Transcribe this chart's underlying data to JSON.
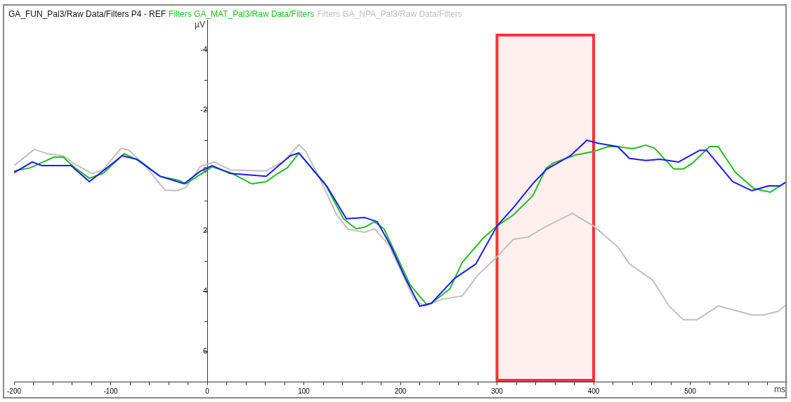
{
  "chart_data": {
    "type": "line",
    "title": "GA_FUN_Pal3/Raw Data/Filters P4 - REF",
    "xlabel": "ms",
    "ylabel": "µV",
    "xlim": [
      -200,
      600
    ],
    "ylim": [
      7,
      -5
    ],
    "xticks": [
      -200,
      {
        "value": -180,
        "label": null
      },
      {
        "value": -160,
        "label": null
      },
      {
        "value": -140,
        "label": null
      },
      {
        "value": -120,
        "label": null
      },
      -100,
      {
        "value": -80,
        "label": null
      },
      {
        "value": -60,
        "label": null
      },
      {
        "value": -40,
        "label": null
      },
      {
        "value": -20,
        "label": null
      },
      0,
      {
        "value": 20,
        "label": null
      },
      {
        "value": 40,
        "label": null
      },
      {
        "value": 60,
        "label": null
      },
      {
        "value": 80,
        "label": null
      },
      100,
      {
        "value": 120,
        "label": null
      },
      {
        "value": 140,
        "label": null
      },
      {
        "value": 160,
        "label": null
      },
      {
        "value": 180,
        "label": null
      },
      200,
      {
        "value": 220,
        "label": null
      },
      {
        "value": 240,
        "label": null
      },
      {
        "value": 260,
        "label": null
      },
      {
        "value": 280,
        "label": null
      },
      300,
      {
        "value": 320,
        "label": null
      },
      {
        "value": 340,
        "label": null
      },
      {
        "value": 360,
        "label": null
      },
      {
        "value": 380,
        "label": null
      },
      400,
      {
        "value": 420,
        "label": null
      },
      {
        "value": 440,
        "label": null
      },
      {
        "value": 460,
        "label": null
      },
      {
        "value": 480,
        "label": null
      },
      500,
      {
        "value": 520,
        "label": null
      },
      {
        "value": 540,
        "label": null
      },
      {
        "value": 560,
        "label": null
      },
      {
        "value": 580,
        "label": null
      }
    ],
    "yticks": [
      -4,
      {
        "value": -3,
        "label": null
      },
      -2,
      {
        "value": -1,
        "label": null
      },
      0,
      {
        "value": 1,
        "label": null
      },
      2,
      {
        "value": 3,
        "label": null
      },
      4,
      {
        "value": 5,
        "label": null
      },
      6
    ],
    "grid": false,
    "legend": "top",
    "marker": "none",
    "line_style": "solid",
    "bands": [
      {
        "axis": "x",
        "from": 300,
        "to": 400,
        "color": "#ff3333"
      }
    ],
    "series": [
      {
        "color": "#1a1aff",
        "x": [
          -200,
          -181,
          -171,
          -141,
          -122,
          -88,
          -73,
          -49,
          -24,
          -7,
          5,
          24,
          61,
          86,
          95,
          115,
          124,
          144,
          163,
          176,
          190,
          205,
          220,
          232,
          256,
          278,
          300,
          317,
          337,
          351,
          376,
          393,
          405,
          425,
          437,
          454,
          469,
          488,
          510,
          517,
          544,
          564,
          581,
          593,
          600
        ],
        "values": [
          0.07,
          -0.28,
          -0.16,
          -0.16,
          0.37,
          -0.49,
          -0.37,
          0.19,
          0.44,
          0.02,
          -0.16,
          0.1,
          0.19,
          -0.49,
          -0.58,
          0.19,
          0.53,
          1.6,
          1.56,
          1.7,
          2.5,
          3.56,
          4.5,
          4.4,
          3.58,
          3.1,
          1.84,
          1.23,
          0.44,
          -0.03,
          -0.49,
          -1.0,
          -0.9,
          -0.79,
          -0.4,
          -0.33,
          -0.37,
          -0.28,
          -0.67,
          -0.67,
          0.37,
          0.67,
          0.51,
          0.51,
          0.37
        ]
      },
      {
        "name": "Filters GA_MAT_Pal3/Raw Data/Filters",
        "color": "#22bb22",
        "x": [
          -200,
          -183,
          -159,
          -149,
          -139,
          -122,
          -108,
          -86,
          -68,
          -49,
          -29,
          -22,
          5,
          24,
          46,
          61,
          73,
          83,
          95,
          122,
          141,
          154,
          163,
          173,
          183,
          210,
          227,
          232,
          251,
          264,
          286,
          300,
          317,
          337,
          351,
          359,
          381,
          400,
          415,
          425,
          441,
          454,
          463,
          483,
          493,
          503,
          520,
          529,
          547,
          566,
          583,
          600
        ],
        "values": [
          0.02,
          -0.09,
          -0.44,
          -0.44,
          -0.14,
          0.26,
          0.1,
          -0.56,
          -0.28,
          0.19,
          0.33,
          0.44,
          -0.12,
          0.07,
          0.44,
          0.37,
          0.1,
          -0.09,
          -0.58,
          0.44,
          1.6,
          1.93,
          1.88,
          1.7,
          1.93,
          3.79,
          4.44,
          4.4,
          3.93,
          3.05,
          2.23,
          1.84,
          1.47,
          0.84,
          -0.08,
          -0.26,
          -0.51,
          -0.63,
          -0.79,
          -0.79,
          -0.72,
          -0.84,
          -0.74,
          -0.05,
          -0.05,
          -0.26,
          -0.79,
          -0.79,
          0.07,
          0.6,
          0.72,
          0.37
        ]
      },
      {
        "name": "Filters GA_NPA_Pal3/Raw Data/Filters",
        "color": "#c0c0c0",
        "x": [
          -200,
          -179,
          -166,
          -149,
          -137,
          -119,
          -108,
          -89,
          -81,
          -64,
          -44,
          -31,
          -22,
          -7,
          7,
          24,
          61,
          80,
          95,
          102,
          117,
          134,
          146,
          163,
          173,
          188,
          214,
          225,
          244,
          264,
          280,
          298,
          317,
          332,
          351,
          378,
          400,
          425,
          437,
          461,
          478,
          493,
          507,
          529,
          542,
          564,
          576,
          591,
          600
        ],
        "values": [
          -0.16,
          -0.7,
          -0.56,
          -0.49,
          -0.21,
          0.1,
          -0.02,
          -0.74,
          -0.67,
          -0.16,
          0.65,
          0.67,
          0.56,
          -0.14,
          -0.28,
          -0.02,
          0.02,
          -0.33,
          -0.86,
          -0.63,
          0.3,
          1.47,
          1.95,
          2.05,
          1.93,
          2.47,
          4.26,
          4.5,
          4.26,
          4.16,
          3.47,
          2.93,
          2.28,
          2.21,
          1.85,
          1.42,
          1.84,
          2.53,
          3.09,
          3.63,
          4.49,
          4.95,
          4.95,
          4.49,
          4.6,
          4.79,
          4.79,
          4.67,
          4.44
        ]
      }
    ]
  }
}
